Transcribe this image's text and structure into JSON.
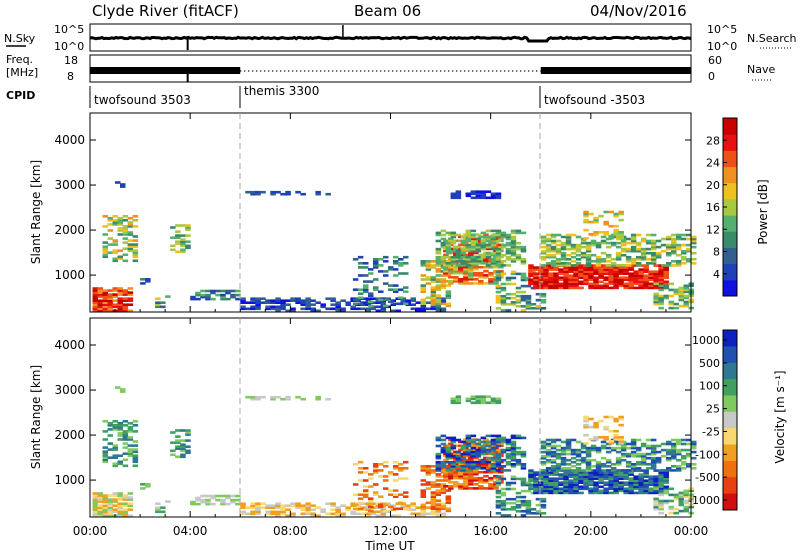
{
  "header": {
    "station": "Clyde River (fitACF)",
    "beam": "Beam 06",
    "date": "04/Nov/2016"
  },
  "panels": {
    "nsky": {
      "left_label": "N.Sky",
      "right_label": "N.Search",
      "left_ticks": [
        "10^5",
        "10^0"
      ],
      "right_ticks": [
        "10^5",
        "10^0"
      ]
    },
    "freq": {
      "left_label_1": "Freq.",
      "left_label_2": "[MHz]",
      "right_label": "Nave",
      "left_ticks": [
        "18",
        "8"
      ],
      "right_ticks": [
        "60",
        "0"
      ]
    },
    "cpid": {
      "label": "CPID",
      "segments": [
        {
          "name": "twofsound 3503",
          "start_hr": 0
        },
        {
          "name": "themis 3300",
          "start_hr": 6
        },
        {
          "name": "twofsound -3503",
          "start_hr": 18
        }
      ]
    }
  },
  "colors": {
    "power": [
      "#1010e0",
      "#2040b8",
      "#306090",
      "#3a8a6a",
      "#55b070",
      "#a8c840",
      "#f0c020",
      "#f09020",
      "#f05018",
      "#e81010",
      "#c80000"
    ],
    "velocity": [
      "#d01010",
      "#e84010",
      "#f07010",
      "#f0a020",
      "#f8d870",
      "#c8c8c8",
      "#80c860",
      "#40a060",
      "#307890",
      "#2050b0",
      "#1020c0"
    ]
  },
  "chart_data": [
    {
      "type": "heatmap",
      "title": "",
      "xlabel": "",
      "ylabel": "Slant Range [km]",
      "x_range": [
        "00:00",
        "00:00"
      ],
      "ylim": [
        180,
        4600
      ],
      "y_ticks": [
        "1000",
        "2000",
        "3000",
        "4000"
      ],
      "colorbar": {
        "label": "Power [dB]",
        "range": [
          0,
          32
        ],
        "ticks": [
          "4",
          "8",
          "12",
          "16",
          "20",
          "24",
          "28"
        ]
      }
    },
    {
      "type": "heatmap",
      "title": "",
      "xlabel": "Time UT",
      "ylabel": "Slant Range [km]",
      "x_ticks": [
        "00:00",
        "04:00",
        "08:00",
        "12:00",
        "16:00",
        "20:00",
        "00:00"
      ],
      "ylim": [
        180,
        4600
      ],
      "y_ticks": [
        "1000",
        "2000",
        "3000",
        "4000"
      ],
      "colorbar": {
        "label": "Velocity [m s⁻¹]",
        "ticks": [
          "1000",
          "500",
          "100",
          "25",
          "-25",
          "-100",
          "-500",
          "-1000"
        ]
      }
    }
  ]
}
